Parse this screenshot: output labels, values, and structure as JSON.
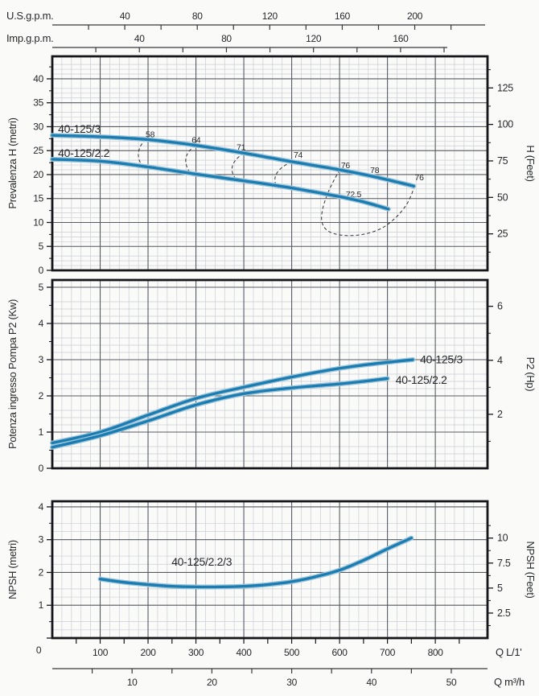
{
  "colors": {
    "curve": "#1a7cb0",
    "curve_halo": "#9cc4da",
    "grid_minor": "#c9cdd6",
    "grid_major": "#565b63",
    "border": "#141619",
    "axis_line": "#35383c",
    "dashed": "#2f3235",
    "dot": "#1b1d1f",
    "text": "#26282b"
  },
  "x_axes": {
    "us": {
      "label": "U.S.g.p.m.",
      "ticks": [
        40,
        80,
        120,
        160,
        200
      ],
      "minor_step": 20,
      "max": 220,
      "to_l": 3.785
    },
    "imp": {
      "label": "Imp.g.p.m.",
      "ticks": [
        40,
        80,
        120,
        160
      ],
      "minor_step": 20,
      "max": 180,
      "to_l": 4.546
    },
    "l": {
      "label": "Q L/1'",
      "zero_label": "0",
      "ticks": [
        100,
        200,
        300,
        400,
        500,
        600,
        700,
        800
      ],
      "minor_step": 50,
      "max": 850,
      "to_l": 1
    },
    "m3": {
      "label": "Q m³/h",
      "ticks": [
        10,
        20,
        30,
        40,
        50
      ],
      "minor_step": 5,
      "max": 54,
      "to_l": 16.667
    }
  },
  "chart_data": [
    {
      "type": "line",
      "name": "head",
      "ylabel": "Prevalenza H (metri)",
      "ylabel_right": "H (Feet)",
      "xlabel": "Q L/1'",
      "ylim": [
        0,
        44.7
      ],
      "yticks": [
        0,
        5,
        10,
        15,
        20,
        25,
        30,
        35,
        40
      ],
      "yminor": 1,
      "ymajor": 5,
      "yminor_tick": 2.5,
      "right_ticks": [
        25,
        50,
        75,
        100,
        125
      ],
      "right_minor": 12.5,
      "right_max": 140,
      "right_unit_to_metric": 0.3048,
      "series": [
        {
          "name": "40-125/3",
          "points": [
            [
              0,
              28.2
            ],
            [
              100,
              27.9
            ],
            [
              200,
              27.3
            ],
            [
              300,
              26.1
            ],
            [
              400,
              24.5
            ],
            [
              500,
              22.7
            ],
            [
              600,
              21.0
            ],
            [
              675,
              19.5
            ],
            [
              755,
              17.6
            ]
          ],
          "label_at": [
            12,
            28.7
          ]
        },
        {
          "name": "40-125/2.2",
          "points": [
            [
              0,
              23.2
            ],
            [
              100,
              22.8
            ],
            [
              200,
              21.6
            ],
            [
              300,
              20.1
            ],
            [
              400,
              18.7
            ],
            [
              500,
              17.2
            ],
            [
              600,
              15.4
            ],
            [
              650,
              14.3
            ],
            [
              702,
              12.8
            ]
          ],
          "label_at": [
            12,
            23.7
          ]
        }
      ],
      "efficiency": {
        "arcs": [
          {
            "label": "58",
            "pts": [
              [
                195,
                27.4
              ],
              [
                180,
                24.6
              ],
              [
                188,
                21.8
              ]
            ]
          },
          {
            "label": "64",
            "pts": [
              [
                299,
                26.1
              ],
              [
                279,
                23.4
              ],
              [
                289,
                20.2
              ]
            ]
          },
          {
            "label": "71",
            "pts": [
              [
                400,
                24.5
              ],
              [
                376,
                21.7
              ],
              [
                386,
                18.8
              ]
            ]
          },
          {
            "label": "74",
            "pts": [
              [
                500,
                22.7
              ],
              [
                471,
                20.6
              ],
              [
                466,
                18.2
              ]
            ]
          }
        ],
        "loop": [
          [
            600,
            21.0
          ],
          [
            577,
            16.5
          ],
          [
            564,
            12.5
          ],
          [
            564,
            9.8
          ],
          [
            578,
            8.1
          ],
          [
            608,
            7.3
          ],
          [
            648,
            7.5
          ],
          [
            686,
            8.7
          ],
          [
            716,
            10.9
          ],
          [
            739,
            13.6
          ],
          [
            752,
            16.3
          ],
          [
            755,
            17.6
          ]
        ],
        "dots": [
          [
            195,
            27.4
          ],
          [
            299,
            26.1
          ],
          [
            400,
            24.5
          ],
          [
            500,
            22.7
          ],
          [
            600,
            21.0
          ],
          [
            675,
            19.5
          ],
          [
            755,
            17.6
          ],
          [
            627,
            14.8
          ]
        ],
        "labels": [
          {
            "text": "58",
            "q": 195,
            "v": 27.8
          },
          {
            "text": "64",
            "q": 291,
            "v": 26.6
          },
          {
            "text": "71",
            "q": 385,
            "v": 25.1
          },
          {
            "text": "74",
            "q": 504,
            "v": 23.5
          },
          {
            "text": "76",
            "q": 603,
            "v": 21.3
          },
          {
            "text": "78",
            "q": 664,
            "v": 20.3
          },
          {
            "text": "76",
            "q": 757,
            "v": 18.8
          },
          {
            "text": "72.5",
            "q": 613,
            "v": 15.3
          }
        ]
      }
    },
    {
      "type": "line",
      "name": "power",
      "ylabel": "Potenza ingresso Pompa P2 (Kw)",
      "ylabel_right": "P2 (Hp)",
      "xlabel": "Q L/1'",
      "ylim": [
        0,
        5.2
      ],
      "yticks": [
        0,
        1,
        2,
        3,
        4,
        5
      ],
      "yminor": 0.2,
      "ymajor": 1,
      "yminor_tick": 0.5,
      "right_ticks": [
        2,
        4,
        6
      ],
      "right_minor": 1,
      "right_max": 6.9,
      "right_unit_to_metric": 0.7457,
      "series": [
        {
          "name": "40-125/3",
          "points": [
            [
              0,
              0.7
            ],
            [
              100,
              1.0
            ],
            [
              200,
              1.47
            ],
            [
              300,
              1.93
            ],
            [
              400,
              2.24
            ],
            [
              500,
              2.52
            ],
            [
              600,
              2.76
            ],
            [
              675,
              2.89
            ],
            [
              753,
              3.0
            ]
          ],
          "label_at": [
            768,
            2.9
          ]
        },
        {
          "name": "40-125/2.2",
          "points": [
            [
              0,
              0.58
            ],
            [
              100,
              0.9
            ],
            [
              200,
              1.31
            ],
            [
              300,
              1.75
            ],
            [
              400,
              2.06
            ],
            [
              500,
              2.22
            ],
            [
              600,
              2.33
            ],
            [
              650,
              2.4
            ],
            [
              700,
              2.48
            ]
          ],
          "label_at": [
            717,
            2.33
          ]
        }
      ]
    },
    {
      "type": "line",
      "name": "npsh",
      "ylabel": "NPSH (metri)",
      "ylabel_right": "NPSH (Feet)",
      "xlabel": "Q L/1'",
      "ylim": [
        0,
        4.17
      ],
      "yticks": [
        0,
        1,
        2,
        3,
        4
      ],
      "yticks_skip_zero": true,
      "yminor": 0.25,
      "ymajor": 1,
      "yminor_tick": 0.5,
      "right_ticks": [
        2.5,
        5,
        7.5,
        10
      ],
      "right_minor": 1.25,
      "right_max": 11.5,
      "right_unit_to_metric": 0.3048,
      "series": [
        {
          "name": "40-125/2.2/3",
          "points": [
            [
              100,
              1.8
            ],
            [
              150,
              1.7
            ],
            [
              200,
              1.63
            ],
            [
              250,
              1.58
            ],
            [
              300,
              1.56
            ],
            [
              350,
              1.56
            ],
            [
              400,
              1.58
            ],
            [
              450,
              1.63
            ],
            [
              500,
              1.72
            ],
            [
              550,
              1.87
            ],
            [
              600,
              2.07
            ],
            [
              650,
              2.37
            ],
            [
              700,
              2.72
            ],
            [
              750,
              3.05
            ]
          ],
          "label_at": [
            249,
            2.21
          ]
        }
      ]
    }
  ]
}
